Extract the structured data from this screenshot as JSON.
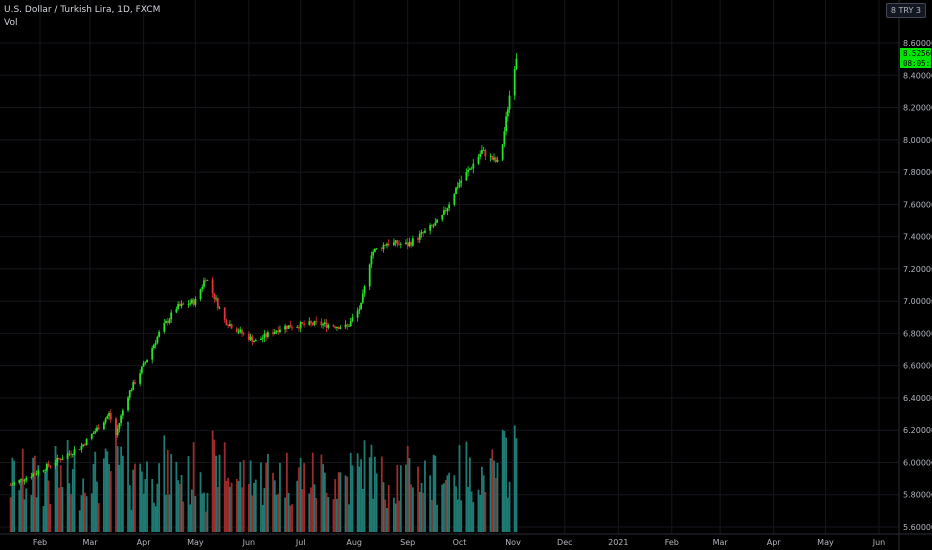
{
  "header": {
    "symbol_line": "U.S. Dollar / Turkish Lira, 1D, FXCM",
    "volume_label": "Vol",
    "currency_button": "8 TRY 3"
  },
  "price_tags": {
    "last_price": "8.52560",
    "countdown": "08:05:25",
    "color": "#00e600"
  },
  "colors": {
    "up": "#26e526",
    "down": "#e8323a",
    "vol_up": "#1f7a73",
    "vol_down": "#9a2c2c"
  },
  "chart_data": {
    "type": "candlestick",
    "title": "U.S. Dollar / Turkish Lira, 1D, FXCM",
    "y_ticks": [
      "8.60000",
      "8.40000",
      "8.20000",
      "8.00000",
      "7.80000",
      "7.60000",
      "7.40000",
      "7.20000",
      "7.00000",
      "6.80000",
      "6.60000",
      "6.40000",
      "6.20000",
      "6.00000",
      "5.80000",
      "5.60000"
    ],
    "x_ticks": [
      "Feb",
      "Mar",
      "Apr",
      "May",
      "Jun",
      "Jul",
      "Aug",
      "Sep",
      "Oct",
      "Nov",
      "Dec",
      "2021",
      "Feb",
      "Mar",
      "Apr",
      "May",
      "Jun"
    ],
    "ylim": [
      5.6,
      8.7
    ],
    "close_anchors": [
      {
        "date": "2020-01-15",
        "close": 5.86
      },
      {
        "date": "2020-02-01",
        "close": 5.95
      },
      {
        "date": "2020-02-25",
        "close": 6.1
      },
      {
        "date": "2020-03-06",
        "close": 6.22
      },
      {
        "date": "2020-03-12",
        "close": 6.3
      },
      {
        "date": "2020-03-16",
        "close": 6.17
      },
      {
        "date": "2020-03-22",
        "close": 6.4
      },
      {
        "date": "2020-04-01",
        "close": 6.6
      },
      {
        "date": "2020-04-10",
        "close": 6.8
      },
      {
        "date": "2020-04-20",
        "close": 6.96
      },
      {
        "date": "2020-05-01",
        "close": 7.0
      },
      {
        "date": "2020-05-07",
        "close": 7.15
      },
      {
        "date": "2020-05-18",
        "close": 6.88
      },
      {
        "date": "2020-05-28",
        "close": 6.8
      },
      {
        "date": "2020-06-05",
        "close": 6.75
      },
      {
        "date": "2020-06-20",
        "close": 6.84
      },
      {
        "date": "2020-07-10",
        "close": 6.86
      },
      {
        "date": "2020-07-28",
        "close": 6.84
      },
      {
        "date": "2020-08-05",
        "close": 6.97
      },
      {
        "date": "2020-08-11",
        "close": 7.3
      },
      {
        "date": "2020-08-20",
        "close": 7.36
      },
      {
        "date": "2020-09-01",
        "close": 7.35
      },
      {
        "date": "2020-09-10",
        "close": 7.42
      },
      {
        "date": "2020-09-20",
        "close": 7.5
      },
      {
        "date": "2020-09-30",
        "close": 7.72
      },
      {
        "date": "2020-10-07",
        "close": 7.82
      },
      {
        "date": "2020-10-14",
        "close": 7.93
      },
      {
        "date": "2020-10-20",
        "close": 7.88
      },
      {
        "date": "2020-10-24",
        "close": 7.85
      },
      {
        "date": "2020-10-26",
        "close": 7.98
      },
      {
        "date": "2020-10-31",
        "close": 8.35
      },
      {
        "date": "2020-11-03",
        "close": 8.52
      }
    ],
    "volume_note_max": 1.0
  }
}
